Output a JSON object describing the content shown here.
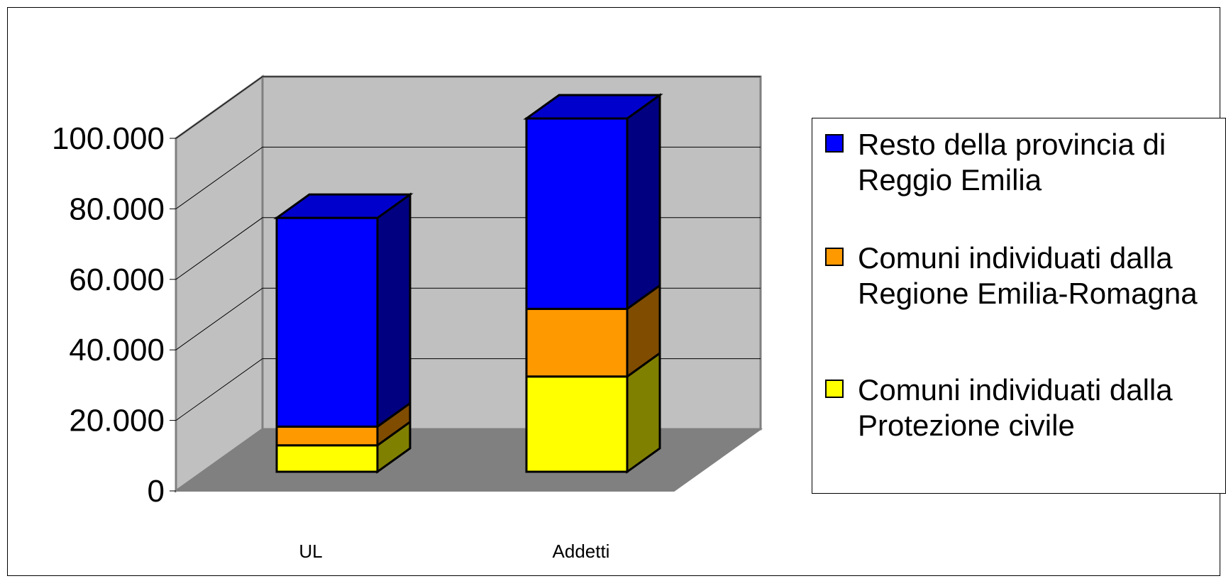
{
  "chart_data": {
    "type": "bar",
    "stacked": true,
    "three_d": true,
    "categories": [
      "UL",
      "Addetti"
    ],
    "series": [
      {
        "name": "Comuni individuati dalla Protezione civile",
        "values": [
          7500,
          27000
        ],
        "color": "#FFFF00",
        "side_color": "#808000"
      },
      {
        "name": "Comuni individuati dalla Regione Emilia-Romagna",
        "values": [
          5300,
          19200
        ],
        "color": "#FF9900",
        "side_color": "#804C00"
      },
      {
        "name": "Resto della provincia di Reggio Emilia",
        "values": [
          59200,
          54000
        ],
        "color": "#0000FF",
        "side_color": "#000080"
      }
    ],
    "yticks": [
      "0",
      "20.000",
      "40.000",
      "60.000",
      "80.000",
      "100.000"
    ],
    "ylim": [
      0,
      100000
    ],
    "grid": true,
    "legend_position": "right",
    "colors": {
      "back_wall": "#C0C0C0",
      "side_wall": "#C0C0C0",
      "floor": "#808080"
    }
  },
  "legend": {
    "items": [
      {
        "label": "Resto della provincia di Reggio Emilia",
        "color": "#0000FF"
      },
      {
        "label": "Comuni individuati dalla Regione Emilia-Romagna",
        "color": "#FF9900"
      },
      {
        "label": "Comuni individuati dalla Protezione civile",
        "color": "#FFFF00"
      }
    ]
  }
}
